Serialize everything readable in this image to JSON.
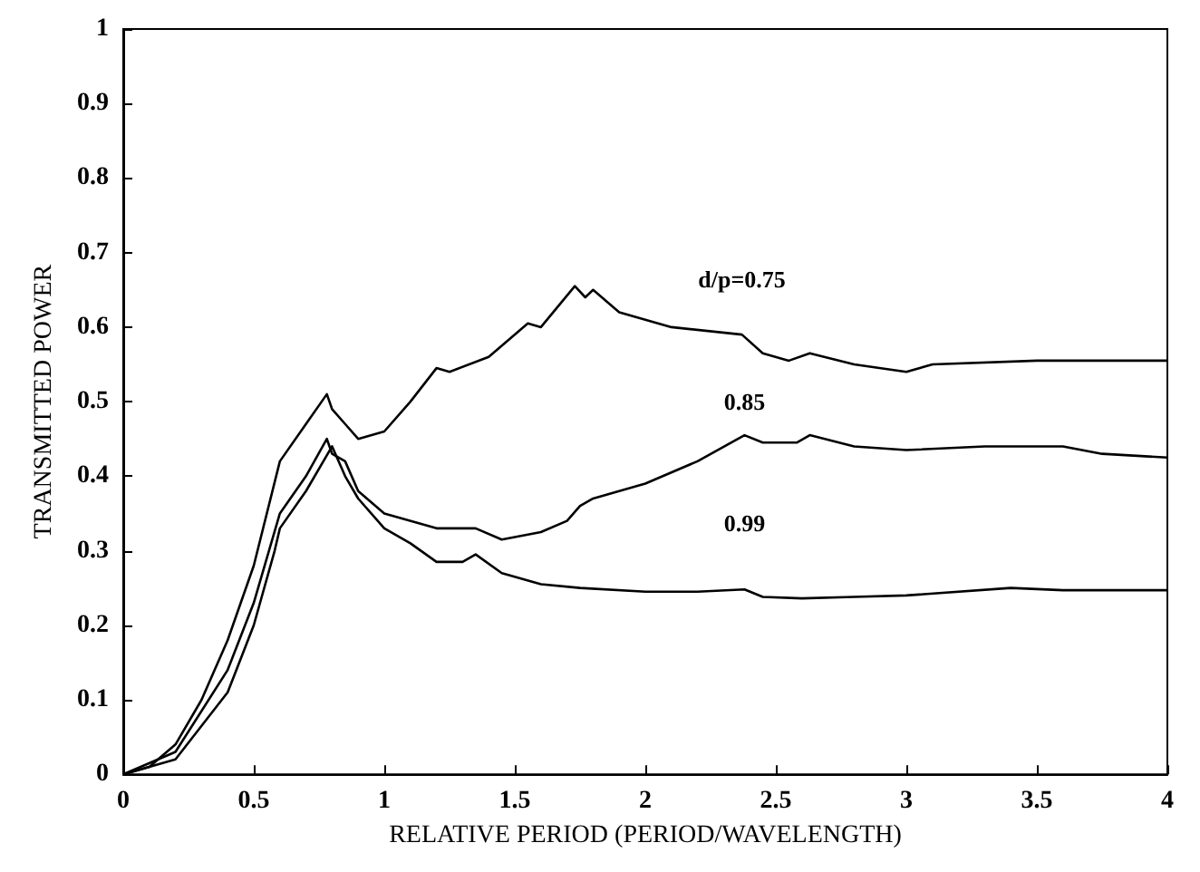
{
  "chart_data": {
    "type": "line",
    "xlabel": "RELATIVE PERIOD (PERIOD/WAVELENGTH)",
    "ylabel": "TRANSMITTED POWER",
    "xlim": [
      0,
      4
    ],
    "xticks": [
      0,
      0.5,
      1,
      1.5,
      2,
      2.5,
      3,
      3.5,
      4
    ],
    "ylim": [
      0,
      1
    ],
    "yticks": [
      0,
      0.1,
      0.2,
      0.3,
      0.4,
      0.5,
      0.6,
      0.7,
      0.8,
      0.9,
      1
    ],
    "grid": false,
    "marker": "none",
    "line_style": "solid",
    "series": [
      {
        "name": "d/p=0.75",
        "color": "#000000",
        "x": [
          0,
          0.1,
          0.2,
          0.3,
          0.4,
          0.5,
          0.6,
          0.7,
          0.78,
          0.8,
          0.85,
          0.9,
          1.0,
          1.1,
          1.2,
          1.25,
          1.4,
          1.55,
          1.6,
          1.73,
          1.77,
          1.8,
          1.9,
          2.1,
          2.37,
          2.45,
          2.55,
          2.63,
          2.8,
          3.0,
          3.1,
          3.5,
          4
        ],
        "values": [
          0,
          0.01,
          0.04,
          0.1,
          0.18,
          0.28,
          0.42,
          0.47,
          0.51,
          0.49,
          0.47,
          0.45,
          0.46,
          0.5,
          0.545,
          0.54,
          0.56,
          0.605,
          0.6,
          0.655,
          0.64,
          0.65,
          0.62,
          0.6,
          0.59,
          0.565,
          0.555,
          0.565,
          0.55,
          0.54,
          0.55,
          0.555,
          0.555
        ]
      },
      {
        "name": "0.85",
        "color": "#000000",
        "x": [
          0,
          0.2,
          0.4,
          0.5,
          0.6,
          0.7,
          0.78,
          0.8,
          0.85,
          0.9,
          1.0,
          1.2,
          1.35,
          1.45,
          1.6,
          1.7,
          1.75,
          1.8,
          2.0,
          2.2,
          2.38,
          2.45,
          2.58,
          2.63,
          2.8,
          3.0,
          3.3,
          3.6,
          3.75,
          4
        ],
        "values": [
          0,
          0.03,
          0.14,
          0.23,
          0.35,
          0.4,
          0.45,
          0.43,
          0.42,
          0.38,
          0.35,
          0.33,
          0.33,
          0.315,
          0.325,
          0.34,
          0.36,
          0.37,
          0.39,
          0.42,
          0.455,
          0.445,
          0.445,
          0.455,
          0.44,
          0.435,
          0.44,
          0.44,
          0.43,
          0.425
        ]
      },
      {
        "name": "0.99",
        "color": "#000000",
        "x": [
          0,
          0.2,
          0.4,
          0.5,
          0.58,
          0.6,
          0.7,
          0.8,
          0.85,
          0.9,
          1.0,
          1.1,
          1.2,
          1.3,
          1.35,
          1.45,
          1.6,
          1.75,
          2.0,
          2.2,
          2.38,
          2.45,
          2.6,
          2.8,
          3.0,
          3.4,
          3.6,
          4
        ],
        "values": [
          0,
          0.02,
          0.11,
          0.2,
          0.3,
          0.33,
          0.38,
          0.44,
          0.4,
          0.37,
          0.33,
          0.31,
          0.285,
          0.285,
          0.295,
          0.27,
          0.255,
          0.25,
          0.245,
          0.245,
          0.248,
          0.238,
          0.236,
          0.238,
          0.24,
          0.25,
          0.247,
          0.247
        ]
      }
    ]
  }
}
